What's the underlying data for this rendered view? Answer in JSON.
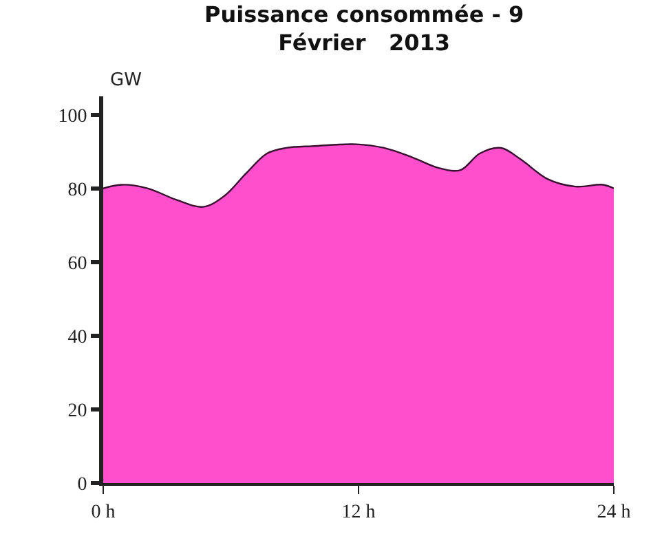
{
  "chart_data": {
    "type": "area",
    "title": "Puissance consommée - 9\nFévrier   2013",
    "ylabel": "GW",
    "x": [
      0,
      0.85,
      2.1,
      3.4,
      4.7,
      5.7,
      6.7,
      7.7,
      8.6,
      9.9,
      11.9,
      13.2,
      14.5,
      15.8,
      16.8,
      17.7,
      18.7,
      19.6,
      20.9,
      22.2,
      23.5,
      24
    ],
    "series": [
      {
        "color": "#ff4fcc",
        "values": [
          80,
          81,
          80,
          77,
          75,
          78,
          84,
          89.5,
          91,
          91.5,
          92,
          91,
          88.5,
          85.5,
          85,
          89.5,
          91,
          88,
          82.5,
          80.5,
          81,
          80
        ]
      }
    ],
    "xlim": [
      0,
      24
    ],
    "xticks": [
      {
        "value": 0,
        "label": "0 h"
      },
      {
        "value": 12,
        "label": "12 h"
      },
      {
        "value": 24,
        "label": "24 h"
      }
    ],
    "ylim": [
      0,
      105
    ],
    "yticks": [
      0,
      20,
      40,
      60,
      80,
      100
    ]
  }
}
